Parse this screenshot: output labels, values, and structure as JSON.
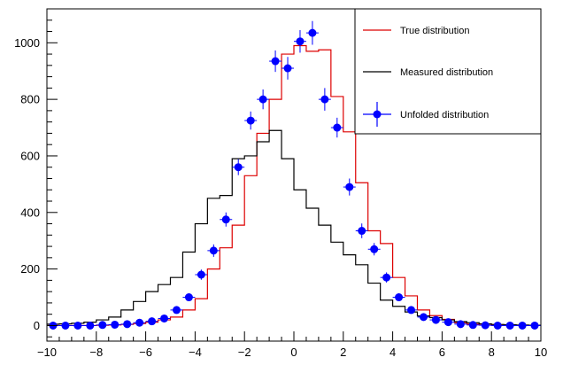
{
  "chart_data": {
    "type": "histogram",
    "xlim": [
      -10,
      10
    ],
    "ylim": [
      -55,
      1120
    ],
    "x_ticks": [
      -10,
      -8,
      -6,
      -4,
      -2,
      0,
      2,
      4,
      6,
      8,
      10
    ],
    "y_ticks": [
      0,
      200,
      400,
      600,
      800,
      1000
    ],
    "bin_edges": [
      -10,
      -9.5,
      -9,
      -8.5,
      -8,
      -7.5,
      -7,
      -6.5,
      -6,
      -5.5,
      -5,
      -4.5,
      -4,
      -3.5,
      -3,
      -2.5,
      -2,
      -1.5,
      -1,
      -0.5,
      0,
      0.5,
      1,
      1.5,
      2,
      2.5,
      3,
      3.5,
      4,
      4.5,
      5,
      5.5,
      6,
      6.5,
      7,
      7.5,
      8,
      8.5,
      9,
      9.5,
      10
    ],
    "legend_position": "top-right",
    "grid": false,
    "series": [
      {
        "name": "True distribution",
        "style": "step",
        "color": "#dd0000",
        "values": [
          0,
          0,
          0,
          0,
          1,
          2,
          4,
          7,
          12,
          20,
          30,
          55,
          95,
          200,
          275,
          355,
          530,
          680,
          800,
          960,
          990,
          970,
          975,
          810,
          685,
          505,
          335,
          290,
          170,
          105,
          55,
          35,
          22,
          10,
          5,
          2,
          1,
          0,
          0,
          0
        ]
      },
      {
        "name": "Measured distribution",
        "style": "step",
        "color": "#000000",
        "values": [
          5,
          6,
          8,
          12,
          20,
          30,
          55,
          85,
          120,
          145,
          170,
          260,
          360,
          450,
          460,
          590,
          600,
          650,
          690,
          590,
          480,
          415,
          355,
          295,
          250,
          215,
          150,
          90,
          68,
          48,
          34,
          28,
          20,
          14,
          10,
          6,
          4,
          3,
          2,
          1
        ]
      },
      {
        "name": "Unfolded distribution",
        "style": "markers-errorbars",
        "color": "#0000ff",
        "values": [
          0,
          0,
          0,
          0,
          2,
          3,
          5,
          10,
          15,
          25,
          55,
          100,
          180,
          265,
          375,
          560,
          725,
          800,
          935,
          910,
          1005,
          1035,
          800,
          700,
          490,
          335,
          270,
          170,
          100,
          55,
          30,
          20,
          12,
          5,
          2,
          1,
          0,
          0,
          0,
          0
        ],
        "errors": [
          3,
          3,
          4,
          4,
          5,
          6,
          7,
          8,
          9,
          10,
          12,
          14,
          18,
          22,
          25,
          28,
          32,
          35,
          38,
          40,
          40,
          42,
          40,
          35,
          30,
          26,
          22,
          18,
          14,
          11,
          9,
          8,
          6,
          5,
          4,
          3,
          3,
          3,
          3,
          3
        ]
      }
    ]
  }
}
